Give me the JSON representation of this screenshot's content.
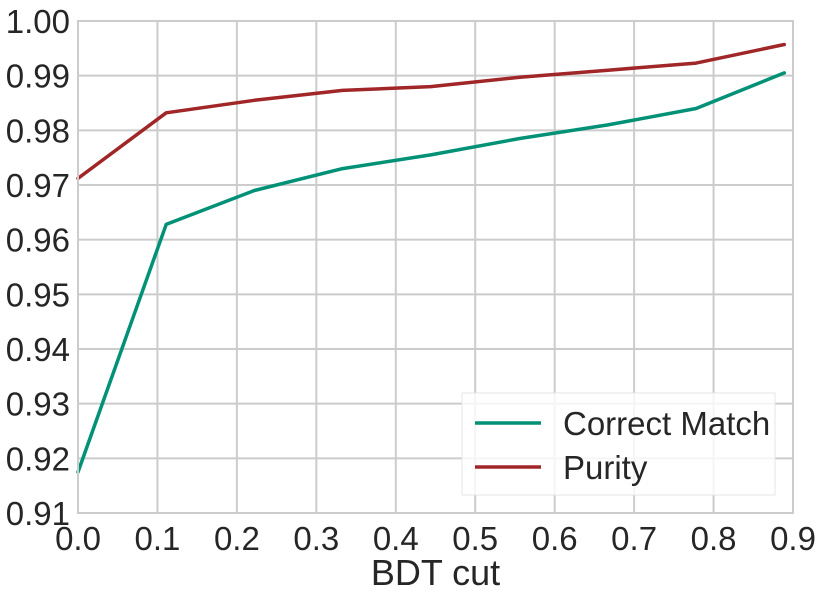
{
  "chart_data": {
    "type": "line",
    "title": "",
    "xlabel": "BDT cut",
    "ylabel": "",
    "xlim": [
      0.0,
      0.9
    ],
    "ylim": [
      0.91,
      1.0
    ],
    "grid": true,
    "legend_position": "bottom-right",
    "x_ticks": [
      "0.0",
      "0.1",
      "0.2",
      "0.3",
      "0.4",
      "0.5",
      "0.6",
      "0.7",
      "0.8",
      "0.9"
    ],
    "y_ticks": [
      "0.91",
      "0.92",
      "0.93",
      "0.94",
      "0.95",
      "0.96",
      "0.97",
      "0.98",
      "0.99",
      "1.00"
    ],
    "x": [
      0.0,
      0.111,
      0.222,
      0.333,
      0.444,
      0.556,
      0.667,
      0.778,
      0.889
    ],
    "series": [
      {
        "name": "Correct Match",
        "color": "#019176",
        "values": [
          0.9175,
          0.9628,
          0.969,
          0.973,
          0.9755,
          0.9785,
          0.981,
          0.984,
          0.9905
        ]
      },
      {
        "name": "Purity",
        "color": "#a02627",
        "values": [
          0.9712,
          0.9832,
          0.9855,
          0.9873,
          0.988,
          0.9897,
          0.991,
          0.9923,
          0.9957
        ]
      }
    ]
  }
}
